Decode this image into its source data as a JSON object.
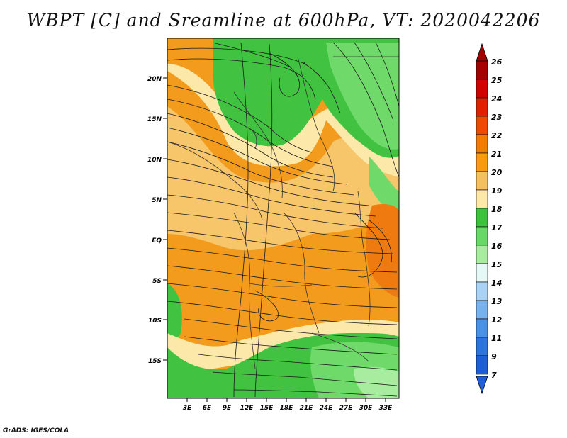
{
  "title": "WBPT [C] and Sreamline at 600hPa, VT: 2020042206",
  "credit": "GrADS: IGES/COLA",
  "map": {
    "lat_labels": [
      "20N",
      "15N",
      "10N",
      "5N",
      "EQ",
      "5S",
      "10S",
      "15S"
    ],
    "lon_labels": [
      "3E",
      "6E",
      "9E",
      "12E",
      "15E",
      "18E",
      "21E",
      "24E",
      "27E",
      "30E",
      "33E"
    ]
  },
  "colorbar": {
    "labels": [
      "26",
      "25",
      "24",
      "23",
      "22",
      "21",
      "20",
      "19",
      "18",
      "17",
      "16",
      "15",
      "14",
      "13",
      "12",
      "11",
      "9",
      "7"
    ],
    "colors": [
      "#a50000",
      "#d00000",
      "#e02000",
      "#ee4a00",
      "#f47a00",
      "#f89b10",
      "#f5c060",
      "#fce8a8",
      "#3ec23e",
      "#68d868",
      "#a8eca0",
      "#e6f8f6",
      "#aad2f4",
      "#78b2ee",
      "#4a92e6",
      "#2c74de",
      "#1e5ed6"
    ]
  },
  "legend_colors": {
    "orange": "#f29b1d",
    "light_orange": "#f7c56a",
    "yellow": "#fce8a8",
    "green": "#41c241",
    "light_green": "#6fda6a",
    "pale_green": "#a8eca0"
  }
}
